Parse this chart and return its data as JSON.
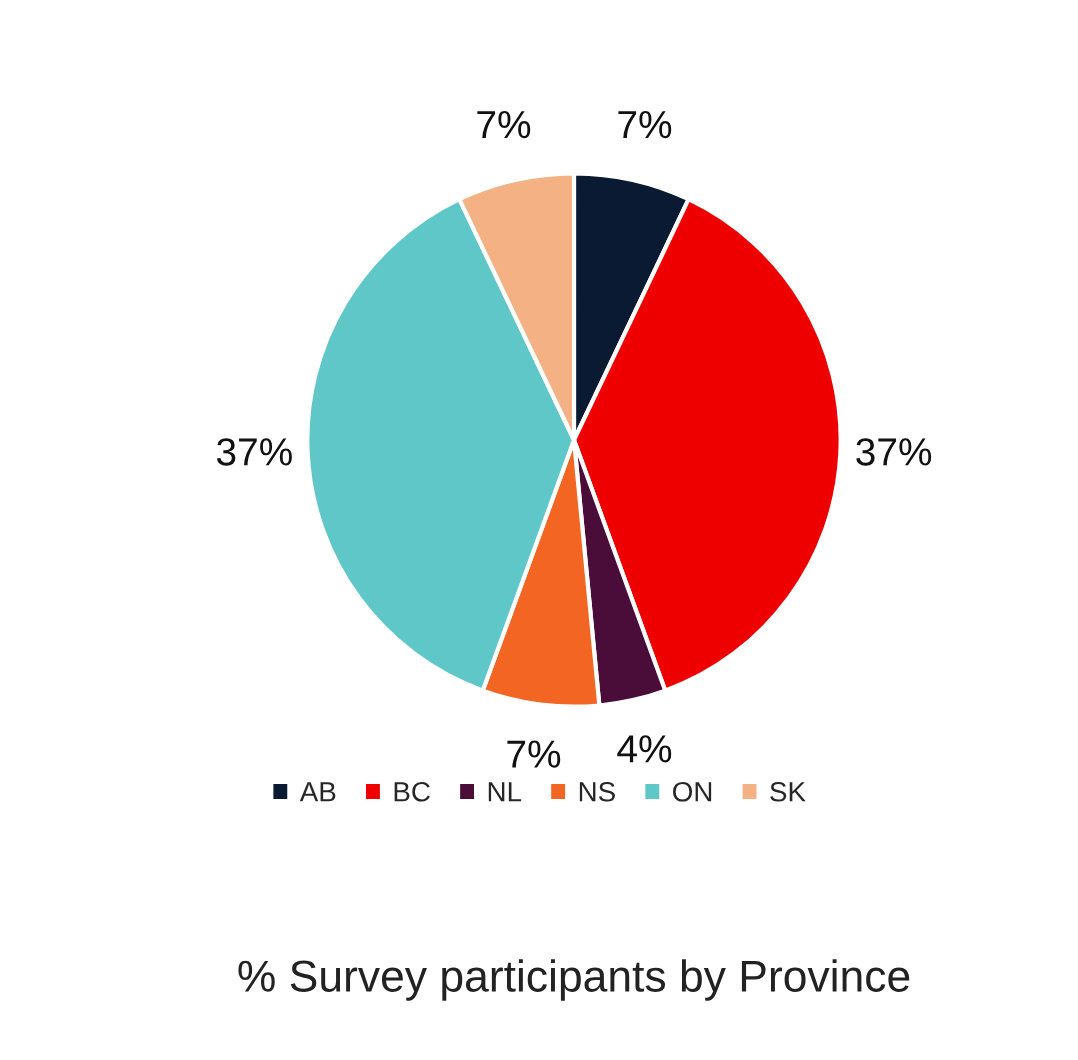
{
  "chart_data": {
    "type": "pie",
    "title": "% Survey participants by Province",
    "categories": [
      "AB",
      "BC",
      "NL",
      "NS",
      "ON",
      "SK"
    ],
    "values": [
      7,
      37,
      4,
      7,
      37,
      7
    ],
    "value_labels": [
      "7%",
      "37%",
      "4%",
      "7%",
      "37%",
      "7%"
    ],
    "colors": [
      "#0a1a33",
      "#ee0000",
      "#4a0d3a",
      "#f26522",
      "#5fc7c7",
      "#f4b183"
    ],
    "legend": "bottom"
  }
}
